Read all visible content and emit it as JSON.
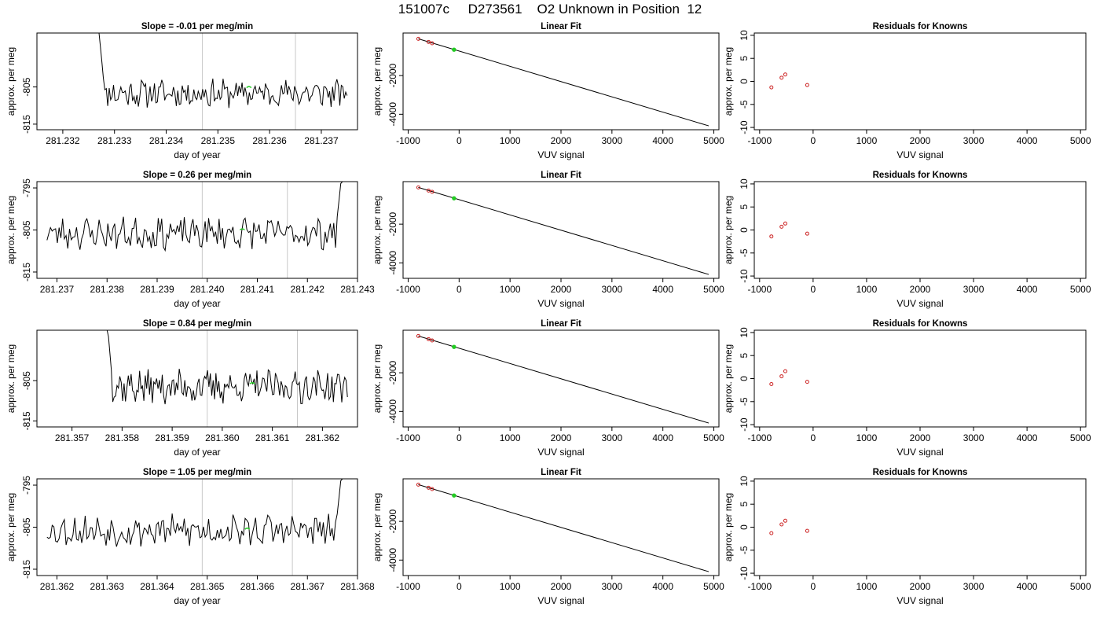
{
  "header": {
    "title": "151007c     D273561    O2 Unknown in Position  12"
  },
  "chart_data": [
    {
      "type": "line",
      "panel": "timeseries",
      "title": "Slope =  -0.01  per meg/min",
      "xlabel": "day of year",
      "ylabel": "approx. per meg",
      "xlim": [
        281.2315,
        281.2377
      ],
      "ylim": [
        -816.5,
        -790.5
      ],
      "xticks": [
        "281.232",
        "281.233",
        "281.234",
        "281.235",
        "281.236",
        "281.237"
      ],
      "xtick_values": [
        281.232,
        281.233,
        281.234,
        281.235,
        281.236,
        281.237
      ],
      "yticks": [
        "-805",
        "-815"
      ],
      "ytick_values": [
        -805,
        -815
      ],
      "vlines": [
        281.2347,
        281.2365
      ],
      "trace": {
        "x_start": 281.2327,
        "x_end": 281.2375,
        "base": -806.7,
        "amp": 1.6,
        "seed": 11,
        "spike": "start"
      },
      "marker": {
        "x": 281.2356,
        "y": -805.2,
        "color": "#22cc22"
      }
    },
    {
      "type": "line",
      "panel": "linear-fit",
      "title": "Linear Fit",
      "xlabel": "VUV signal",
      "ylabel": "approx. per meg",
      "xlim": [
        -1100,
        5100
      ],
      "ylim": [
        -4800,
        200
      ],
      "xticks": [
        "-1000",
        "0",
        "1000",
        "2000",
        "3000",
        "4000",
        "5000"
      ],
      "xtick_values": [
        -1000,
        0,
        1000,
        2000,
        3000,
        4000,
        5000
      ],
      "yticks": [
        "-2000",
        "-4000"
      ],
      "ytick_values": [
        -2000,
        -4000
      ],
      "line": {
        "x": [
          -800,
          4900
        ],
        "y": [
          -100,
          -4600
        ]
      },
      "known_points": {
        "x": [
          -800,
          -600,
          -530
        ],
        "y": [
          -100,
          -260,
          -330
        ],
        "color": "#cc2222"
      },
      "unknown_point": {
        "x": -100,
        "y": -660,
        "color": "#22cc22"
      }
    },
    {
      "type": "scatter",
      "panel": "residuals",
      "title": "Residuals for Knowns",
      "xlabel": "VUV signal",
      "ylabel": "approx. per meg",
      "xlim": [
        -1100,
        5100
      ],
      "ylim": [
        -10.5,
        10.5
      ],
      "xticks": [
        "-1000",
        "0",
        "1000",
        "2000",
        "3000",
        "4000",
        "5000"
      ],
      "xtick_values": [
        -1000,
        0,
        1000,
        2000,
        3000,
        4000,
        5000
      ],
      "yticks": [
        "10",
        "5",
        "0",
        "-5",
        "-10"
      ],
      "ytick_values": [
        10,
        5,
        0,
        -5,
        -10
      ],
      "points": {
        "x": [
          -780,
          -590,
          -520,
          -110
        ],
        "y": [
          -1.3,
          0.8,
          1.5,
          -0.8
        ],
        "color": "#cc2222"
      }
    },
    {
      "type": "line",
      "panel": "timeseries",
      "title": "Slope =  0.26  per meg/min",
      "xlabel": "day of year",
      "ylabel": "approx. per meg",
      "xlim": [
        281.2366,
        281.243
      ],
      "ylim": [
        -816.5,
        -793.5
      ],
      "xticks": [
        "281.237",
        "281.238",
        "281.239",
        "281.240",
        "281.241",
        "281.242",
        "281.243"
      ],
      "xtick_values": [
        281.237,
        281.238,
        281.239,
        281.24,
        281.241,
        281.242,
        281.243
      ],
      "yticks": [
        "-795",
        "-805",
        "-815"
      ],
      "ytick_values": [
        -795,
        -805,
        -815
      ],
      "vlines": [
        281.2399,
        281.2416
      ],
      "trace": {
        "x_start": 281.2368,
        "x_end": 281.2427,
        "base": -805.8,
        "amp": 1.6,
        "seed": 23,
        "spike": "end"
      },
      "marker": {
        "x": 281.2407,
        "y": -805.0,
        "color": "#22cc22"
      }
    },
    {
      "type": "line",
      "panel": "linear-fit",
      "title": "Linear Fit",
      "xlabel": "VUV signal",
      "ylabel": "approx. per meg",
      "xlim": [
        -1100,
        5100
      ],
      "ylim": [
        -4800,
        200
      ],
      "xticks": [
        "-1000",
        "0",
        "1000",
        "2000",
        "3000",
        "4000",
        "5000"
      ],
      "xtick_values": [
        -1000,
        0,
        1000,
        2000,
        3000,
        4000,
        5000
      ],
      "yticks": [
        "-2000",
        "-4000"
      ],
      "ytick_values": [
        -2000,
        -4000
      ],
      "line": {
        "x": [
          -800,
          4900
        ],
        "y": [
          -100,
          -4600
        ]
      },
      "known_points": {
        "x": [
          -800,
          -600,
          -530
        ],
        "y": [
          -100,
          -260,
          -330
        ],
        "color": "#cc2222"
      },
      "unknown_point": {
        "x": -100,
        "y": -660,
        "color": "#22cc22"
      }
    },
    {
      "type": "scatter",
      "panel": "residuals",
      "title": "Residuals for Knowns",
      "xlabel": "VUV signal",
      "ylabel": "approx. per meg",
      "xlim": [
        -1100,
        5100
      ],
      "ylim": [
        -10.5,
        10.5
      ],
      "xticks": [
        "-1000",
        "0",
        "1000",
        "2000",
        "3000",
        "4000",
        "5000"
      ],
      "xtick_values": [
        -1000,
        0,
        1000,
        2000,
        3000,
        4000,
        5000
      ],
      "yticks": [
        "10",
        "5",
        "0",
        "-5",
        "-10"
      ],
      "ytick_values": [
        10,
        5,
        0,
        -5,
        -10
      ],
      "points": {
        "x": [
          -780,
          -590,
          -520,
          -110
        ],
        "y": [
          -1.4,
          0.7,
          1.4,
          -0.8
        ],
        "color": "#cc2222"
      }
    },
    {
      "type": "line",
      "panel": "timeseries",
      "title": "Slope =  0.84  per meg/min",
      "xlabel": "day of year",
      "ylabel": "approx. per meg",
      "xlim": [
        281.3563,
        281.3627
      ],
      "ylim": [
        -816.5,
        -792.5
      ],
      "xticks": [
        "281.357",
        "281.358",
        "281.359",
        "281.360",
        "281.361",
        "281.362"
      ],
      "xtick_values": [
        281.357,
        281.358,
        281.359,
        281.36,
        281.361,
        281.362
      ],
      "yticks": [
        "-805",
        "-815"
      ],
      "ytick_values": [
        -805,
        -815
      ],
      "vlines": [
        281.3597,
        281.3615
      ],
      "trace": {
        "x_start": 281.3577,
        "x_end": 281.3625,
        "base": -806.5,
        "amp": 1.8,
        "seed": 37,
        "spike": "start"
      },
      "marker": {
        "x": 281.3606,
        "y": -805.8,
        "color": "#22cc22"
      }
    },
    {
      "type": "line",
      "panel": "linear-fit",
      "title": "Linear Fit",
      "xlabel": "VUV signal",
      "ylabel": "approx. per meg",
      "xlim": [
        -1100,
        5100
      ],
      "ylim": [
        -4800,
        200
      ],
      "xticks": [
        "-1000",
        "0",
        "1000",
        "2000",
        "3000",
        "4000",
        "5000"
      ],
      "xtick_values": [
        -1000,
        0,
        1000,
        2000,
        3000,
        4000,
        5000
      ],
      "yticks": [
        "-2000",
        "-4000"
      ],
      "ytick_values": [
        -2000,
        -4000
      ],
      "line": {
        "x": [
          -800,
          4900
        ],
        "y": [
          -100,
          -4600
        ]
      },
      "known_points": {
        "x": [
          -800,
          -600,
          -530
        ],
        "y": [
          -100,
          -260,
          -330
        ],
        "color": "#cc2222"
      },
      "unknown_point": {
        "x": -100,
        "y": -660,
        "color": "#22cc22"
      }
    },
    {
      "type": "scatter",
      "panel": "residuals",
      "title": "Residuals for Knowns",
      "xlabel": "VUV signal",
      "ylabel": "approx. per meg",
      "xlim": [
        -1100,
        5100
      ],
      "ylim": [
        -10.5,
        10.5
      ],
      "xticks": [
        "-1000",
        "0",
        "1000",
        "2000",
        "3000",
        "4000",
        "5000"
      ],
      "xtick_values": [
        -1000,
        0,
        1000,
        2000,
        3000,
        4000,
        5000
      ],
      "yticks": [
        "10",
        "5",
        "0",
        "-5",
        "-10"
      ],
      "ytick_values": [
        10,
        5,
        0,
        -5,
        -10
      ],
      "points": {
        "x": [
          -780,
          -590,
          -520,
          -110
        ],
        "y": [
          -1.2,
          0.5,
          1.6,
          -0.7
        ],
        "color": "#cc2222"
      }
    },
    {
      "type": "line",
      "panel": "timeseries",
      "title": "Slope =  1.05  per meg/min",
      "xlabel": "day of year",
      "ylabel": "approx. per meg",
      "xlim": [
        281.3616,
        281.368
      ],
      "ylim": [
        -816.5,
        -793.5
      ],
      "xticks": [
        "281.362",
        "281.363",
        "281.364",
        "281.365",
        "281.366",
        "281.367",
        "281.368"
      ],
      "xtick_values": [
        281.362,
        281.363,
        281.364,
        281.365,
        281.366,
        281.367,
        281.368
      ],
      "yticks": [
        "-795",
        "-805",
        "-815"
      ],
      "ytick_values": [
        -795,
        -805,
        -815
      ],
      "vlines": [
        281.3649,
        281.3667
      ],
      "trace": {
        "x_start": 281.3618,
        "x_end": 281.3677,
        "base": -805.8,
        "amp": 1.6,
        "seed": 53,
        "spike": "end"
      },
      "marker": {
        "x": 281.3658,
        "y": -805.5,
        "color": "#22cc22"
      }
    },
    {
      "type": "line",
      "panel": "linear-fit",
      "title": "Linear Fit",
      "xlabel": "VUV signal",
      "ylabel": "approx. per meg",
      "xlim": [
        -1100,
        5100
      ],
      "ylim": [
        -4800,
        200
      ],
      "xticks": [
        "-1000",
        "0",
        "1000",
        "2000",
        "3000",
        "4000",
        "5000"
      ],
      "xtick_values": [
        -1000,
        0,
        1000,
        2000,
        3000,
        4000,
        5000
      ],
      "yticks": [
        "-2000",
        "-4000"
      ],
      "ytick_values": [
        -2000,
        -4000
      ],
      "line": {
        "x": [
          -800,
          4900
        ],
        "y": [
          -100,
          -4600
        ]
      },
      "known_points": {
        "x": [
          -800,
          -600,
          -530
        ],
        "y": [
          -100,
          -260,
          -330
        ],
        "color": "#cc2222"
      },
      "unknown_point": {
        "x": -100,
        "y": -660,
        "color": "#22cc22"
      }
    },
    {
      "type": "scatter",
      "panel": "residuals",
      "title": "Residuals for Knowns",
      "xlabel": "VUV signal",
      "ylabel": "approx. per meg",
      "xlim": [
        -1100,
        5100
      ],
      "ylim": [
        -10.5,
        10.5
      ],
      "xticks": [
        "-1000",
        "0",
        "1000",
        "2000",
        "3000",
        "4000",
        "5000"
      ],
      "xtick_values": [
        -1000,
        0,
        1000,
        2000,
        3000,
        4000,
        5000
      ],
      "yticks": [
        "10",
        "5",
        "0",
        "-5",
        "-10"
      ],
      "ytick_values": [
        10,
        5,
        0,
        -5,
        -10
      ],
      "points": {
        "x": [
          -780,
          -590,
          -520,
          -110
        ],
        "y": [
          -1.3,
          0.6,
          1.4,
          -0.8
        ],
        "color": "#cc2222"
      }
    }
  ]
}
